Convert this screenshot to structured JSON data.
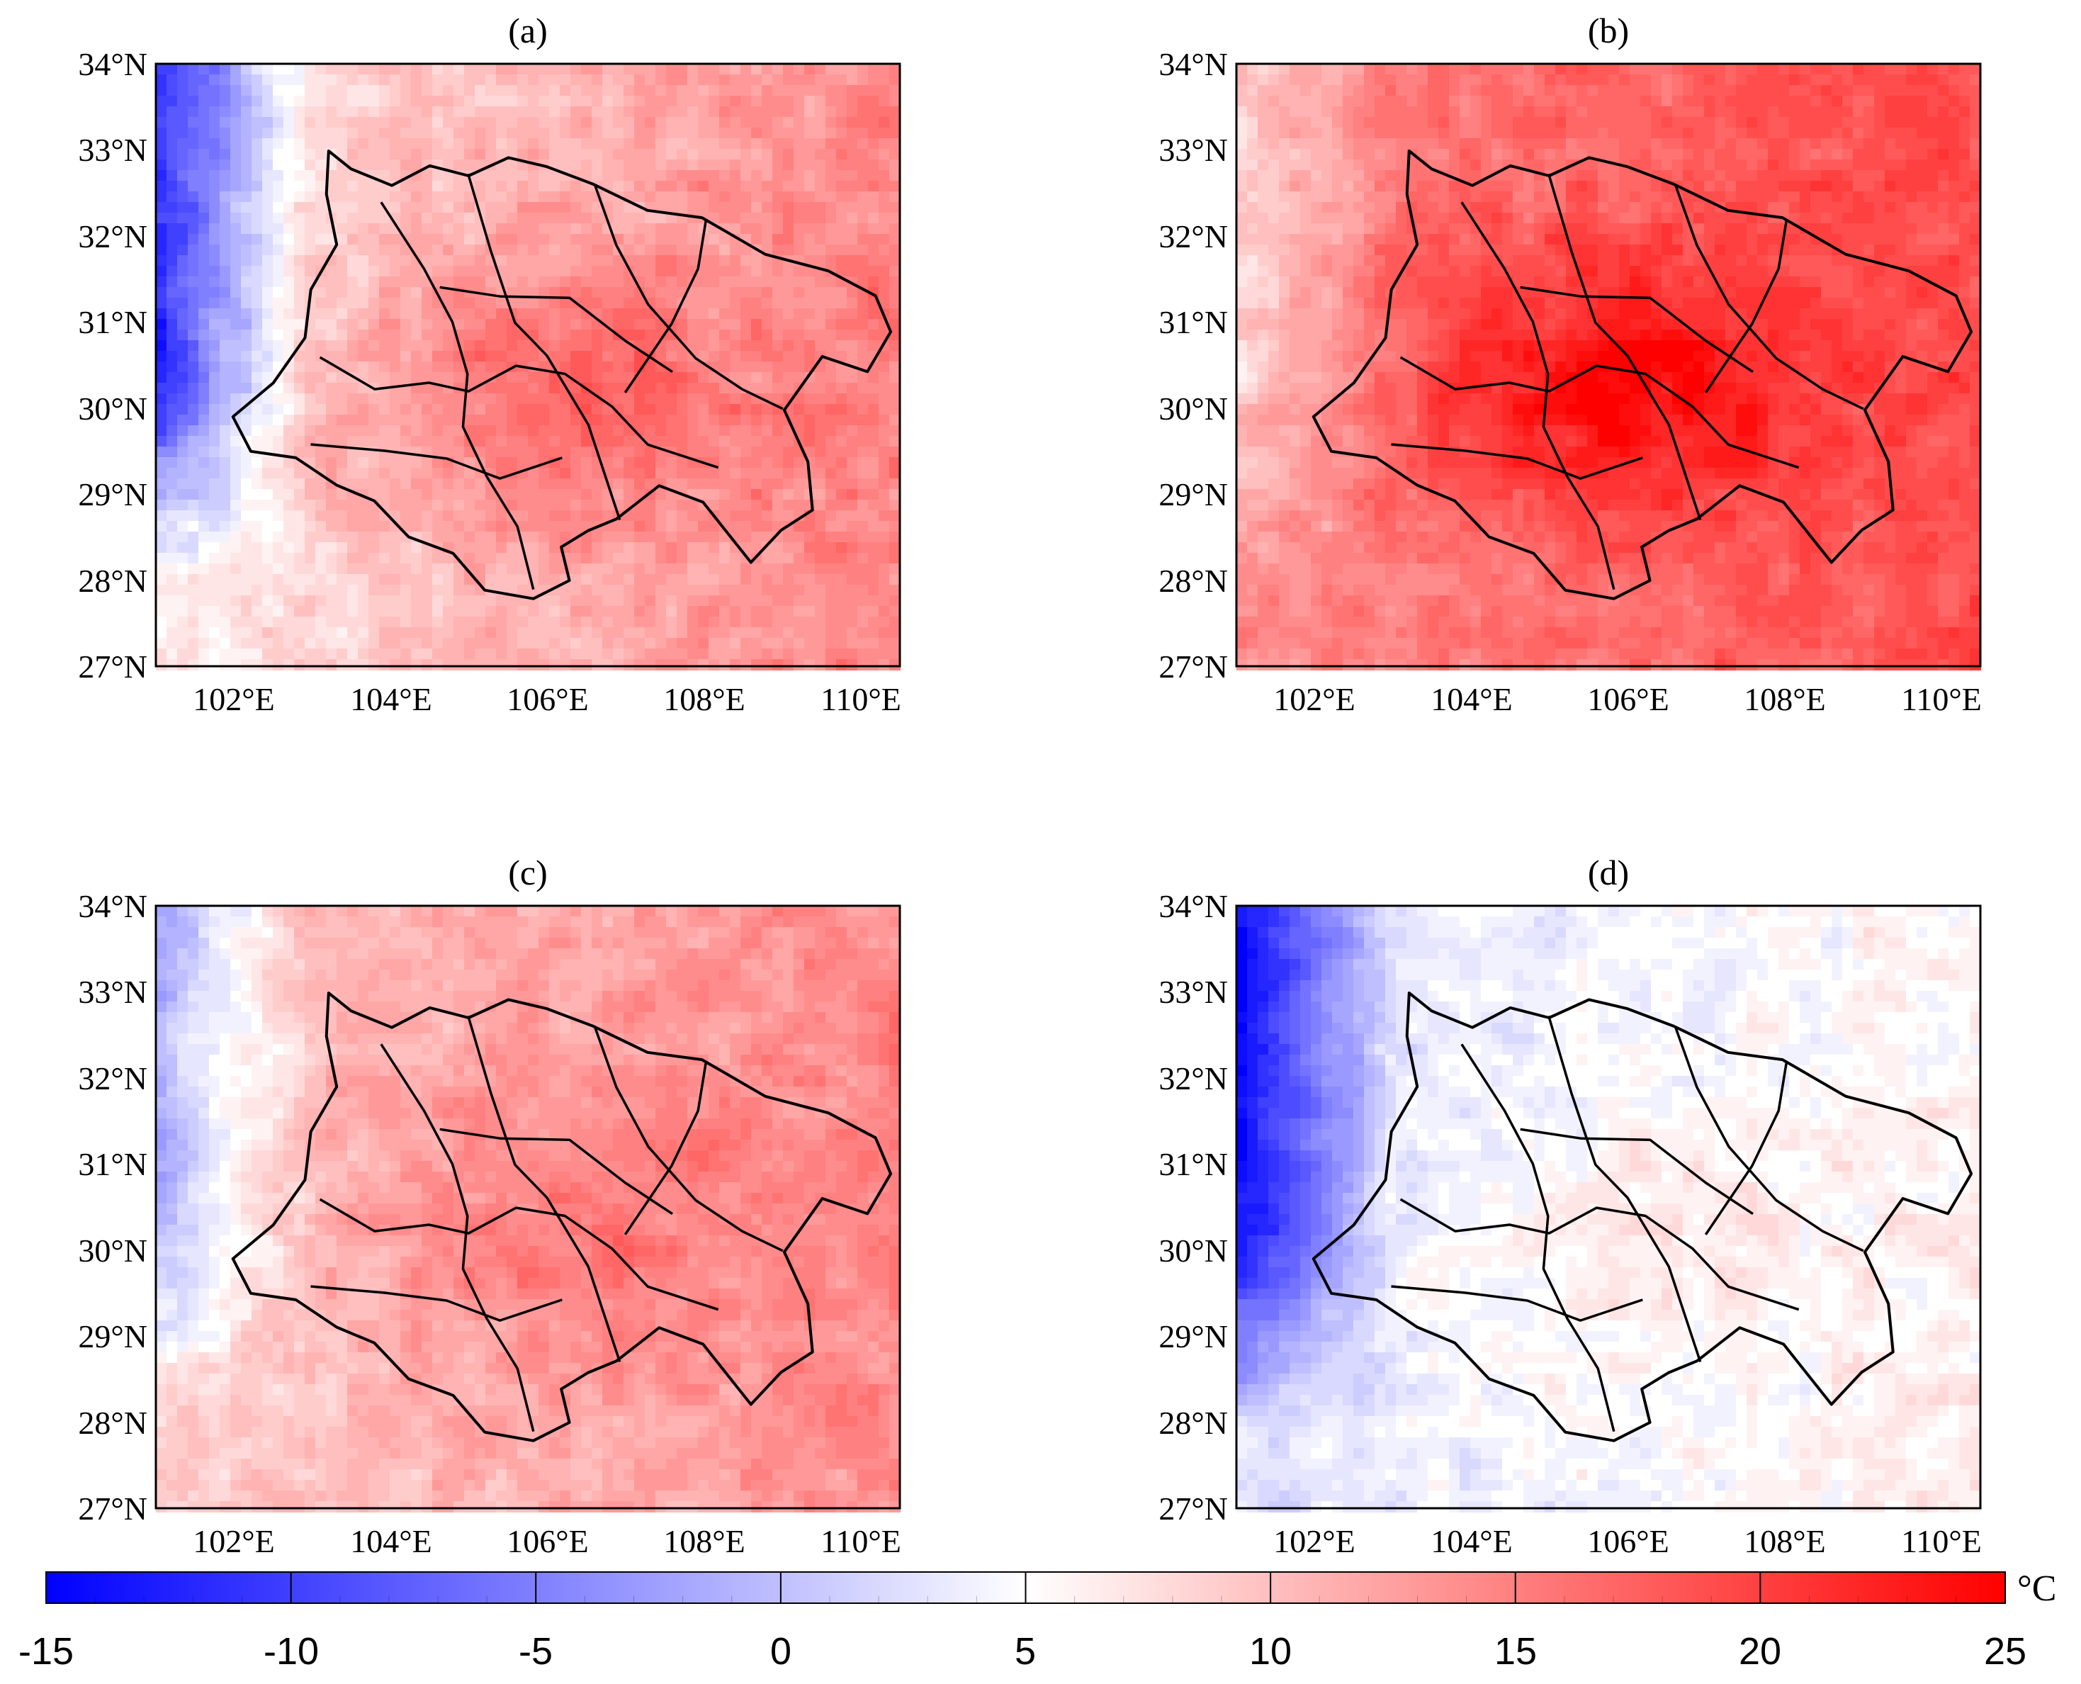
{
  "figure": {
    "panels": [
      {
        "label": "(a)",
        "field": {
          "base": 10,
          "gx": 0.9,
          "gy": 0.0,
          "center": 16,
          "west": -8,
          "noise": 2.2
        }
      },
      {
        "label": "(b)",
        "field": {
          "base": 16,
          "gx": 0.5,
          "gy": 0.1,
          "center": 24,
          "west": 10,
          "noise": 2.0
        }
      },
      {
        "label": "(c)",
        "field": {
          "base": 11,
          "gx": 0.6,
          "gy": 0.1,
          "center": 15,
          "west": 1,
          "noise": 2.0
        }
      },
      {
        "label": "(d)",
        "field": {
          "base": 4,
          "gx": 0.4,
          "gy": -0.1,
          "center": 6,
          "west": -13,
          "noise": 1.8
        }
      }
    ],
    "x_ticks": [
      "102°E",
      "104°E",
      "106°E",
      "108°E",
      "110°E"
    ],
    "x_tick_values": [
      102,
      104,
      106,
      108,
      110
    ],
    "y_ticks": [
      "27°N",
      "28°N",
      "29°N",
      "30°N",
      "31°N",
      "32°N",
      "33°N",
      "34°N"
    ],
    "y_tick_values": [
      27,
      28,
      29,
      30,
      31,
      32,
      33,
      34
    ],
    "lon_range": [
      101,
      110.5
    ],
    "lat_range": [
      27,
      34
    ],
    "colorbar": {
      "min": -15,
      "max": 25,
      "ticks": [
        "-15",
        "-10",
        "-5",
        "0",
        "5",
        "10",
        "15",
        "20",
        "25"
      ],
      "tick_values": [
        -15,
        -10,
        -5,
        0,
        5,
        10,
        15,
        20,
        25
      ],
      "unit": "°C",
      "colors": {
        "cold": "#0000ff",
        "neutral": "#ffffff",
        "warm": "#ff0000"
      }
    },
    "boundary_color": "#000000"
  }
}
